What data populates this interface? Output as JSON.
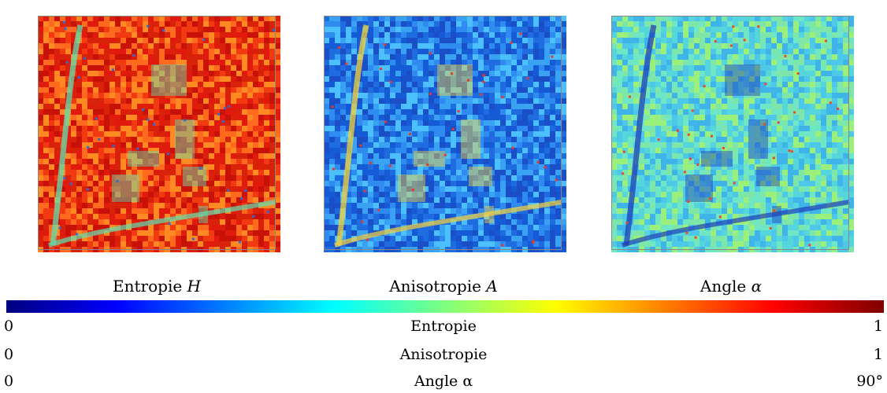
{
  "panels": [
    {
      "caption_text": "Entropie ",
      "caption_var": "H",
      "palette": [
        "#f23a12",
        "#e01a0c",
        "#ff6a1f",
        "#d8220a",
        "#ff8a22",
        "#c81208"
      ],
      "feature_color": "#5fe0b0",
      "speck_color": "#2f6bd8"
    },
    {
      "caption_text": "Anisotropie ",
      "caption_var": "A",
      "palette": [
        "#1f6be0",
        "#2f8bf0",
        "#1a4fc8",
        "#3aa2f2",
        "#165bd6",
        "#4cc0ff"
      ],
      "feature_color": "#f6d23a",
      "speck_color": "#e83a20"
    },
    {
      "caption_text": "Angle ",
      "caption_var": "α",
      "palette": [
        "#55d6dc",
        "#6fe6c4",
        "#3fb4e8",
        "#9af07a",
        "#4ec8e8",
        "#7ee6a8"
      ],
      "feature_color": "#1f3fb8",
      "speck_color": "#e84a2a"
    }
  ],
  "colorbar": {
    "colors": [
      "#00007f",
      "#0000ff",
      "#007fff",
      "#00ffff",
      "#7fff7f",
      "#ffff00",
      "#ff7f00",
      "#ff0000",
      "#7f0000"
    ]
  },
  "legend": [
    {
      "min": "0",
      "label": "Entropie",
      "max": "1"
    },
    {
      "min": "0",
      "label": "Anisotropie",
      "max": "1"
    },
    {
      "min": "0",
      "label": "Angle α",
      "max": "90°"
    }
  ]
}
